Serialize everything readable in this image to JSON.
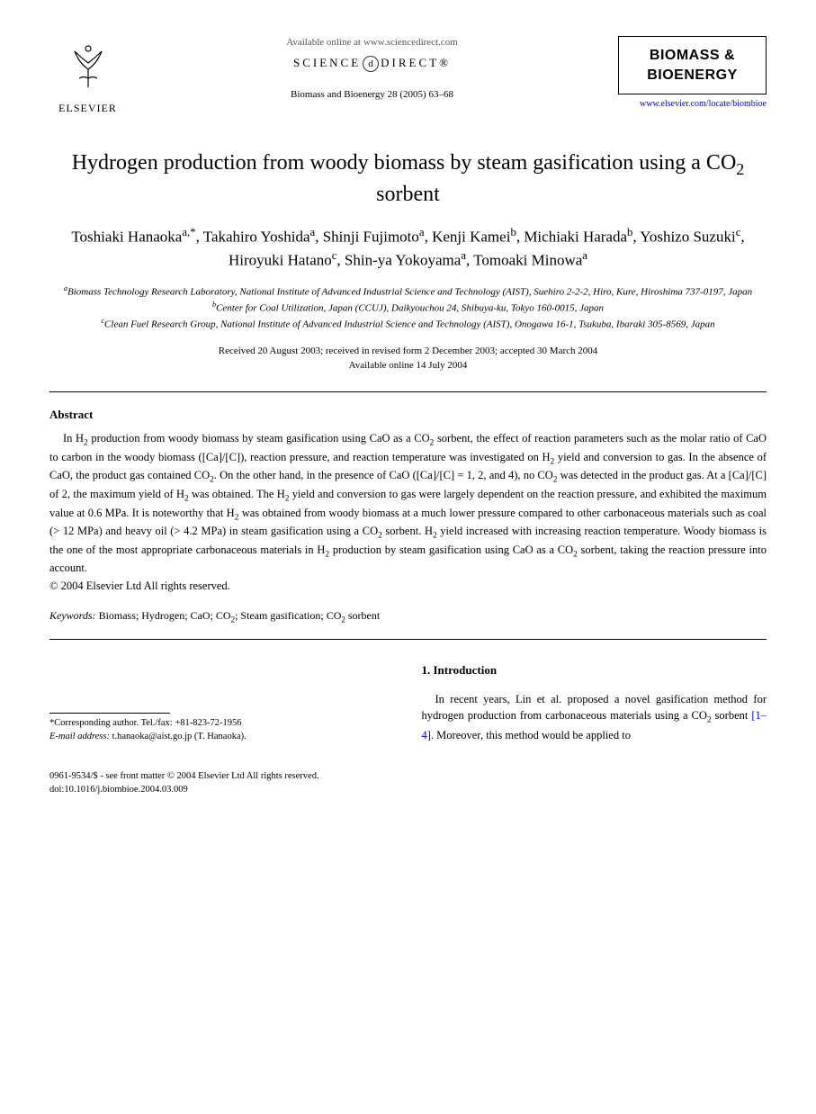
{
  "header": {
    "elsevier_label": "ELSEVIER",
    "available_online": "Available online at www.sciencedirect.com",
    "sciencedirect_left": "SCIENCE",
    "sciencedirect_right": "DIRECT®",
    "citation": "Biomass and Bioenergy 28 (2005) 63–68",
    "journal_name_line1": "BIOMASS &",
    "journal_name_line2": "BIOENERGY",
    "journal_url": "www.elsevier.com/locate/biombioe"
  },
  "title_parts": {
    "pre": "Hydrogen production from woody biomass by steam gasification using a CO",
    "sub": "2",
    "post": " sorbent"
  },
  "authors_html": "Toshiaki Hanaoka<sup>a,*</sup>, Takahiro Yoshida<sup>a</sup>, Shinji Fujimoto<sup>a</sup>, Kenji Kamei<sup>b</sup>, Michiaki Harada<sup>b</sup>, Yoshizo Suzuki<sup>c</sup>, Hiroyuki Hatano<sup>c</sup>, Shin-ya Yokoyama<sup>a</sup>, Tomoaki Minowa<sup>a</sup>",
  "affiliations": [
    {
      "sup": "a",
      "text": "Biomass Technology Research Laboratory, National Institute of Advanced Industrial Science and Technology (AIST), Suehiro 2-2-2, Hiro, Kure, Hiroshima 737-0197, Japan"
    },
    {
      "sup": "b",
      "text": "Center for Coal Utilization, Japan (CCUJ), Daikyouchou 24, Shibuya-ku, Tokyo 160-0015, Japan"
    },
    {
      "sup": "c",
      "text": "Clean Fuel Research Group, National Institute of Advanced Industrial Science and Technology (AIST), Onogawa 16-1, Tsukuba, Ibaraki 305-8569, Japan"
    }
  ],
  "dates": {
    "received": "Received 20 August 2003; received in revised form 2 December 2003; accepted 30 March 2004",
    "online": "Available online 14 July 2004"
  },
  "abstract": {
    "heading": "Abstract",
    "body_html": "In H<sub>2</sub> production from woody biomass by steam gasification using CaO as a CO<sub>2</sub> sorbent, the effect of reaction parameters such as the molar ratio of CaO to carbon in the woody biomass ([Ca]/[C]), reaction pressure, and reaction temperature was investigated on H<sub>2</sub> yield and conversion to gas. In the absence of CaO, the product gas contained CO<sub>2</sub>. On the other hand, in the presence of CaO ([Ca]/[C] = 1, 2, and 4), no CO<sub>2</sub> was detected in the product gas. At a [Ca]/[C] of 2, the maximum yield of H<sub>2</sub> was obtained. The H<sub>2</sub> yield and conversion to gas were largely dependent on the reaction pressure, and exhibited the maximum value at 0.6 MPa. It is noteworthy that H<sub>2</sub> was obtained from woody biomass at a much lower pressure compared to other carbonaceous materials such as coal (> 12 MPa) and heavy oil (> 4.2 MPa) in steam gasification using a CO<sub>2</sub> sorbent. H<sub>2</sub> yield increased with increasing reaction temperature. Woody biomass is the one of the most appropriate carbonaceous materials in H<sub>2</sub> production by steam gasification using CaO as a CO<sub>2</sub> sorbent, taking the reaction pressure into account.",
    "copyright": "© 2004 Elsevier Ltd All rights reserved."
  },
  "keywords": {
    "label": "Keywords:",
    "text_html": " Biomass; Hydrogen; CaO; CO<sub>2</sub>; Steam gasification; CO<sub>2</sub> sorbent"
  },
  "footnote": {
    "corr_label": "*Corresponding author. Tel./fax: ",
    "corr_phone": "+81-823-72-1956",
    "email_label": "E-mail address:",
    "email": " t.hanaoka@aist.go.jp (T. Hanaoka)."
  },
  "intro": {
    "heading": "1. Introduction",
    "body_html": "In recent years, Lin et al. proposed a novel gasification method for hydrogen production from carbonaceous materials using a CO<sub>2</sub> sorbent <span class=\"ref-link\">[1–4]</span>. Moreover, this method would be applied to"
  },
  "footer": {
    "line1": "0961-9534/$ - see front matter © 2004 Elsevier Ltd All rights reserved.",
    "line2": "doi:10.1016/j.biombioe.2004.03.009"
  },
  "colors": {
    "text": "#000000",
    "link": "#0000dd",
    "background": "#ffffff"
  }
}
